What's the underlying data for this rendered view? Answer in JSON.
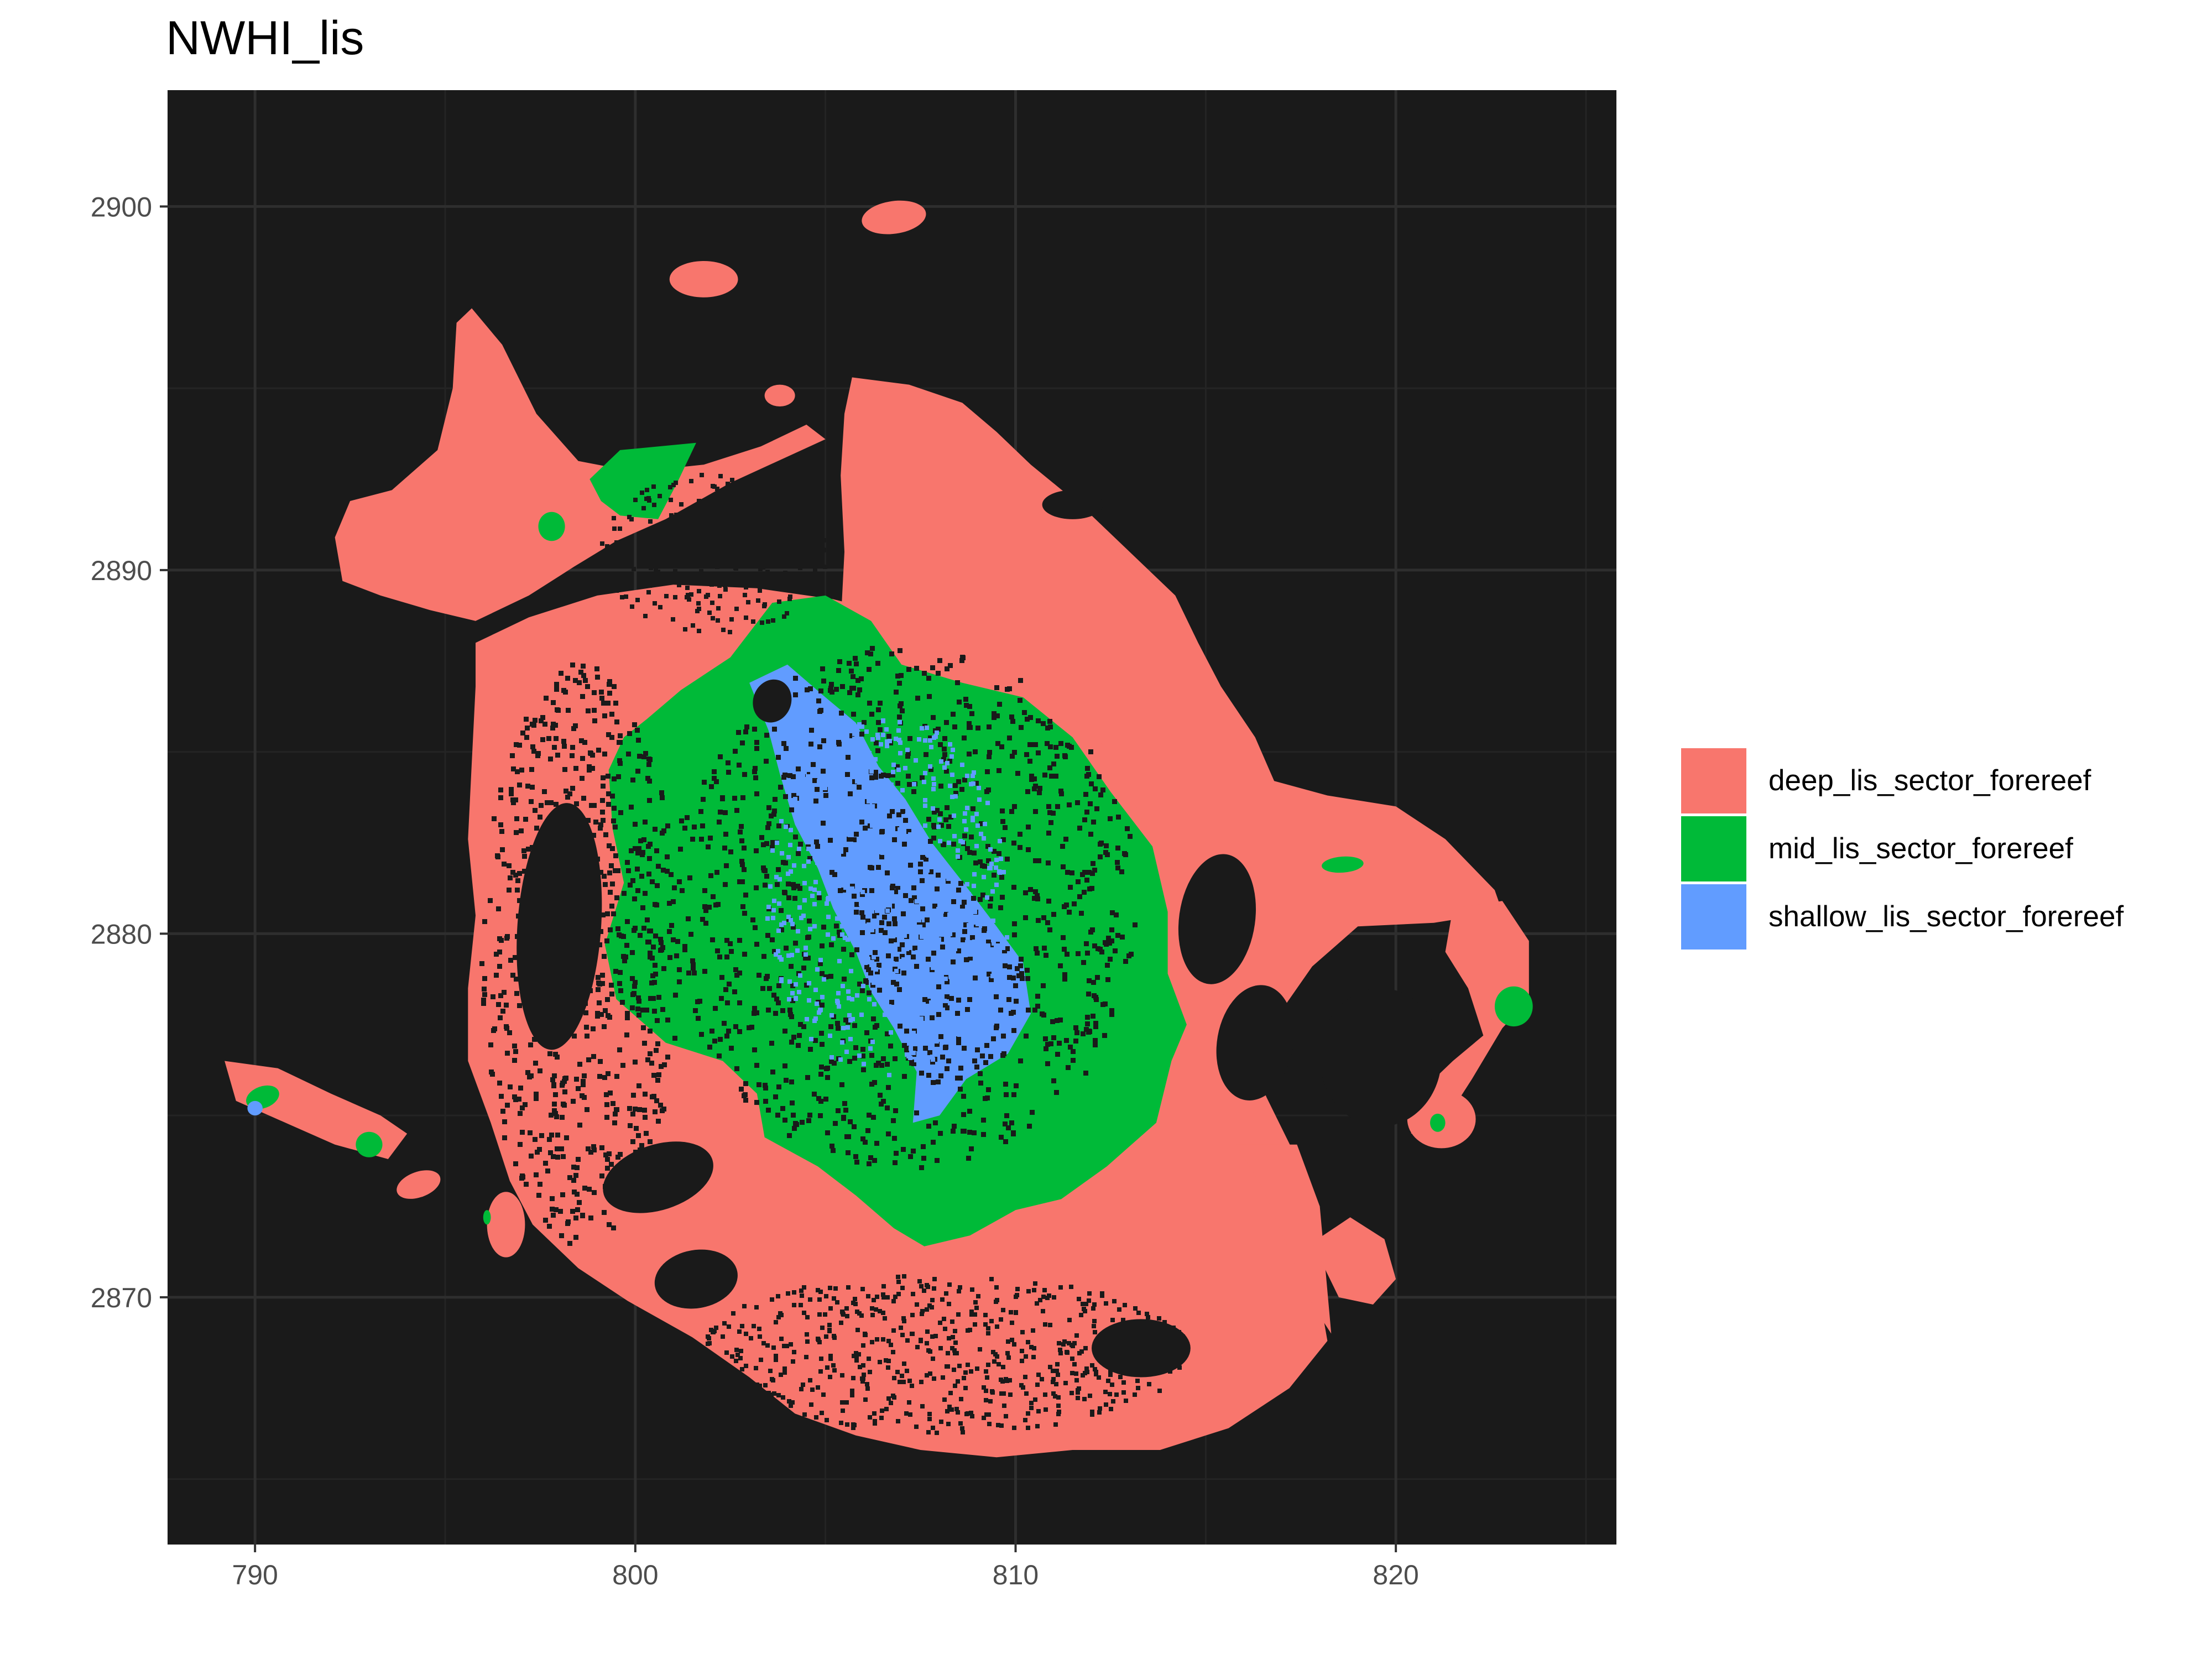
{
  "title": "NWHI_lis",
  "chart_data": {
    "type": "raster-map",
    "title": "NWHI_lis",
    "xlabel": "",
    "ylabel": "",
    "xlim": [
      787.7,
      825.8
    ],
    "ylim": [
      2863.2,
      2903.2
    ],
    "x_ticks": [
      "790",
      "800",
      "810",
      "820"
    ],
    "y_ticks": [
      "2870",
      "2880",
      "2890",
      "2900"
    ],
    "panel_background": "#1a1a1a",
    "grid": true,
    "legend_position": "right",
    "series": [
      {
        "name": "deep_lis_sector_forereef",
        "color": "#f8766d"
      },
      {
        "name": "mid_lis_sector_forereef",
        "color": "#00ba38"
      },
      {
        "name": "shallow_lis_sector_forereef",
        "color": "#619cff"
      }
    ]
  }
}
